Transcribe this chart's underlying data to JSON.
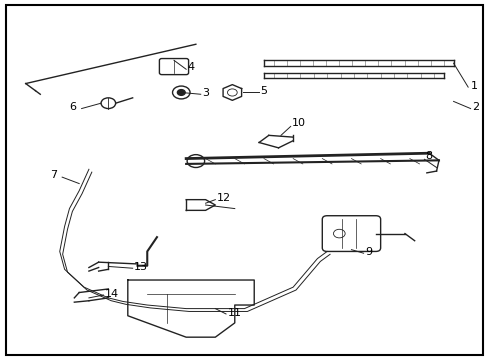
{
  "background_color": "#ffffff",
  "border_color": "#000000",
  "text_color": "#000000",
  "fig_width": 4.89,
  "fig_height": 3.6,
  "dpi": 100,
  "color": "#222222"
}
